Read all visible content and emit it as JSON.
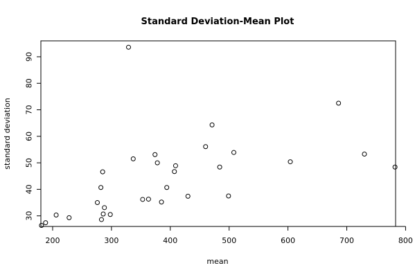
{
  "chart_data": {
    "type": "scatter",
    "title": "Standard Deviation-Mean Plot",
    "xlabel": "mean",
    "ylabel": "standard deviation",
    "xlim": [
      180,
      783
    ],
    "ylim": [
      26,
      96
    ],
    "x_ticks": [
      200,
      300,
      400,
      500,
      600,
      700,
      800
    ],
    "y_ticks": [
      30,
      40,
      50,
      60,
      70,
      80,
      90
    ],
    "grid": false,
    "legend": "none",
    "points": [
      {
        "x": 181,
        "y": 26.4
      },
      {
        "x": 188,
        "y": 27.4
      },
      {
        "x": 206,
        "y": 30.3
      },
      {
        "x": 228,
        "y": 29.3
      },
      {
        "x": 276,
        "y": 35.0
      },
      {
        "x": 282,
        "y": 40.7
      },
      {
        "x": 283,
        "y": 28.6
      },
      {
        "x": 285,
        "y": 46.6
      },
      {
        "x": 286,
        "y": 30.7
      },
      {
        "x": 288,
        "y": 33.1
      },
      {
        "x": 298,
        "y": 30.5
      },
      {
        "x": 329,
        "y": 93.6
      },
      {
        "x": 337,
        "y": 51.5
      },
      {
        "x": 353,
        "y": 36.2
      },
      {
        "x": 363,
        "y": 36.3
      },
      {
        "x": 374,
        "y": 53.1
      },
      {
        "x": 378,
        "y": 50.0
      },
      {
        "x": 385,
        "y": 35.2
      },
      {
        "x": 394,
        "y": 40.7
      },
      {
        "x": 407,
        "y": 46.7
      },
      {
        "x": 409,
        "y": 48.9
      },
      {
        "x": 430,
        "y": 37.4
      },
      {
        "x": 460,
        "y": 56.1
      },
      {
        "x": 471,
        "y": 64.3
      },
      {
        "x": 484,
        "y": 48.4
      },
      {
        "x": 499,
        "y": 37.5
      },
      {
        "x": 508,
        "y": 53.9
      },
      {
        "x": 604,
        "y": 50.4
      },
      {
        "x": 686,
        "y": 72.5
      },
      {
        "x": 730,
        "y": 53.3
      },
      {
        "x": 782,
        "y": 48.4
      }
    ]
  }
}
